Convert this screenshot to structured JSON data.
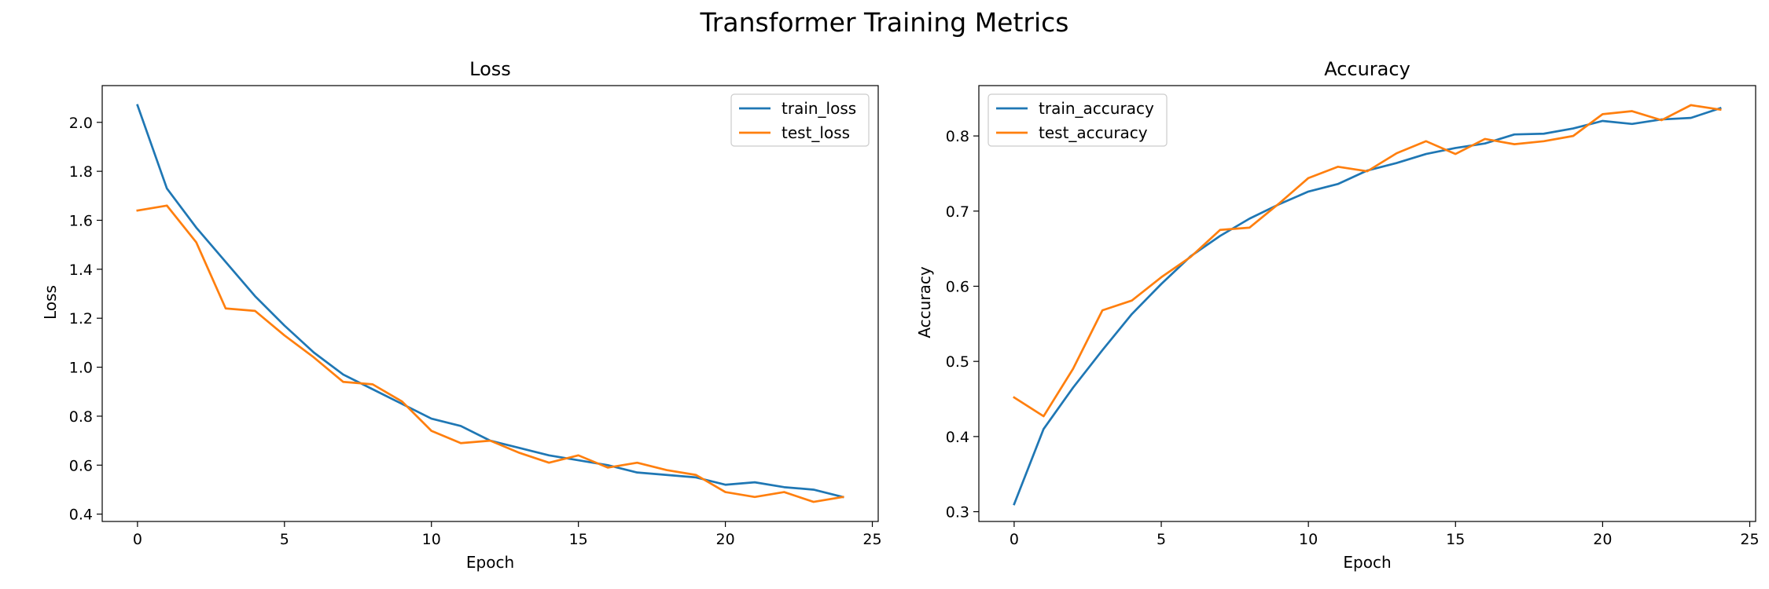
{
  "figure": {
    "title": "Transformer Training Metrics"
  },
  "chart_data": [
    {
      "type": "line",
      "title": "Loss",
      "xlabel": "Epoch",
      "ylabel": "Loss",
      "xlim": [
        -1.2,
        25.2
      ],
      "ylim": [
        0.37,
        2.15
      ],
      "xticks": [
        0,
        5,
        10,
        15,
        20,
        25
      ],
      "yticks": [
        0.4,
        0.6,
        0.8,
        1.0,
        1.2,
        1.4,
        1.6,
        1.8,
        2.0
      ],
      "ytick_labels": [
        "0.4",
        "0.6",
        "0.8",
        "1.0",
        "1.2",
        "1.4",
        "1.6",
        "1.8",
        "2.0"
      ],
      "grid": false,
      "legend": "top-right",
      "x": [
        0,
        1,
        2,
        3,
        4,
        5,
        6,
        7,
        8,
        9,
        10,
        11,
        12,
        13,
        14,
        15,
        16,
        17,
        18,
        19,
        20,
        21,
        22,
        23,
        24
      ],
      "series": [
        {
          "name": "train_loss",
          "color": "#1f77b4",
          "values": [
            2.07,
            1.73,
            1.57,
            1.43,
            1.29,
            1.17,
            1.06,
            0.97,
            0.91,
            0.85,
            0.79,
            0.76,
            0.7,
            0.67,
            0.64,
            0.62,
            0.6,
            0.57,
            0.56,
            0.55,
            0.52,
            0.53,
            0.51,
            0.5,
            0.47
          ]
        },
        {
          "name": "test_loss",
          "color": "#ff7f0e",
          "values": [
            1.64,
            1.66,
            1.51,
            1.24,
            1.23,
            1.13,
            1.04,
            0.94,
            0.93,
            0.86,
            0.74,
            0.69,
            0.7,
            0.65,
            0.61,
            0.64,
            0.59,
            0.61,
            0.58,
            0.56,
            0.49,
            0.47,
            0.49,
            0.45,
            0.47
          ]
        }
      ]
    },
    {
      "type": "line",
      "title": "Accuracy",
      "xlabel": "Epoch",
      "ylabel": "Accuracy",
      "xlim": [
        -1.2,
        25.2
      ],
      "ylim": [
        0.287,
        0.867
      ],
      "xticks": [
        0,
        5,
        10,
        15,
        20,
        25
      ],
      "yticks": [
        0.3,
        0.4,
        0.5,
        0.6,
        0.7,
        0.8
      ],
      "ytick_labels": [
        "0.3",
        "0.4",
        "0.5",
        "0.6",
        "0.7",
        "0.8"
      ],
      "grid": false,
      "legend": "top-left",
      "x": [
        0,
        1,
        2,
        3,
        4,
        5,
        6,
        7,
        8,
        9,
        10,
        11,
        12,
        13,
        14,
        15,
        16,
        17,
        18,
        19,
        20,
        21,
        22,
        23,
        24
      ],
      "series": [
        {
          "name": "train_accuracy",
          "color": "#1f77b4",
          "values": [
            0.31,
            0.41,
            0.465,
            0.515,
            0.563,
            0.603,
            0.64,
            0.667,
            0.69,
            0.709,
            0.726,
            0.736,
            0.754,
            0.764,
            0.776,
            0.784,
            0.79,
            0.802,
            0.803,
            0.81,
            0.82,
            0.816,
            0.822,
            0.824,
            0.837
          ]
        },
        {
          "name": "test_accuracy",
          "color": "#ff7f0e",
          "values": [
            0.452,
            0.427,
            0.49,
            0.568,
            0.581,
            0.612,
            0.639,
            0.675,
            0.678,
            0.71,
            0.744,
            0.759,
            0.753,
            0.777,
            0.793,
            0.776,
            0.796,
            0.789,
            0.793,
            0.8,
            0.829,
            0.833,
            0.821,
            0.841,
            0.835
          ]
        }
      ]
    }
  ]
}
